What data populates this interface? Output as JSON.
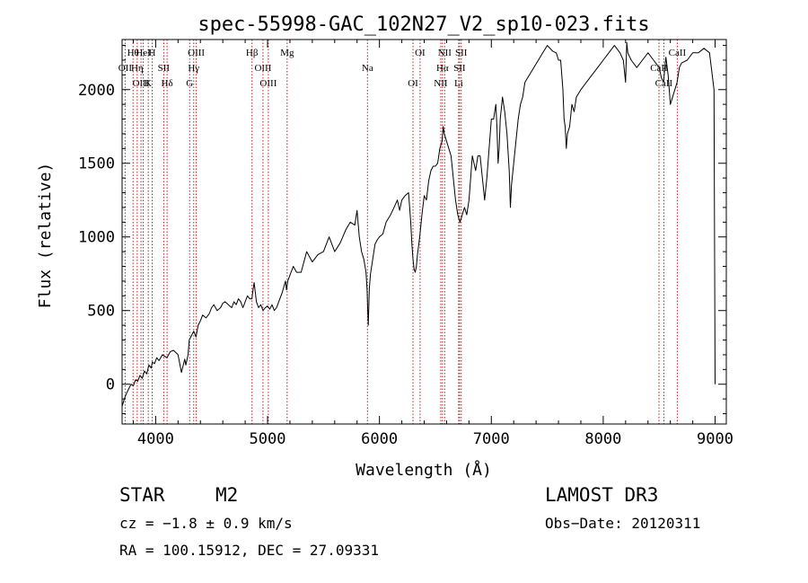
{
  "chart_data": {
    "type": "line",
    "title": "spec-55998-GAC_102N27_V2_sp10-023.fits",
    "xlabel": "Wavelength (Å)",
    "ylabel": "Flux (relative)",
    "xlim": [
      3700,
      9100
    ],
    "ylim": [
      -270,
      2340
    ],
    "xticks": [
      4000,
      5000,
      6000,
      7000,
      8000,
      9000
    ],
    "xtick_labels": [
      "4000",
      "5000",
      "6000",
      "7000",
      "8000",
      "9000"
    ],
    "yticks": [
      0,
      500,
      1000,
      1500,
      2000
    ],
    "ytick_labels": [
      "0",
      "500",
      "1000",
      "1500",
      "2000"
    ],
    "series": [
      {
        "name": "spectrum",
        "x": [
          3700,
          3720,
          3740,
          3760,
          3780,
          3800,
          3820,
          3840,
          3860,
          3880,
          3900,
          3920,
          3940,
          3960,
          3970,
          3990,
          4010,
          4030,
          4060,
          4100,
          4130,
          4160,
          4200,
          4230,
          4260,
          4270,
          4290,
          4300,
          4320,
          4340,
          4360,
          4380,
          4400,
          4420,
          4450,
          4480,
          4500,
          4520,
          4550,
          4580,
          4600,
          4620,
          4650,
          4680,
          4700,
          4720,
          4740,
          4760,
          4780,
          4800,
          4820,
          4840,
          4860,
          4870,
          4880,
          4900,
          4920,
          4940,
          4960,
          4980,
          5000,
          5020,
          5040,
          5060,
          5080,
          5100,
          5130,
          5160,
          5170,
          5180,
          5200,
          5230,
          5260,
          5300,
          5350,
          5400,
          5450,
          5500,
          5550,
          5600,
          5650,
          5700,
          5740,
          5780,
          5800,
          5820,
          5840,
          5860,
          5880,
          5890,
          5895,
          5900,
          5910,
          5920,
          5940,
          5960,
          5980,
          6000,
          6030,
          6060,
          6100,
          6130,
          6160,
          6180,
          6200,
          6230,
          6260,
          6280,
          6290,
          6300,
          6310,
          6320,
          6330,
          6340,
          6360,
          6380,
          6400,
          6420,
          6440,
          6460,
          6480,
          6500,
          6520,
          6540,
          6560,
          6570,
          6580,
          6600,
          6620,
          6640,
          6660,
          6680,
          6700,
          6720,
          6740,
          6760,
          6780,
          6800,
          6830,
          6860,
          6880,
          6900,
          6920,
          6940,
          6960,
          6980,
          7000,
          7020,
          7040,
          7050,
          7060,
          7070,
          7080,
          7100,
          7120,
          7140,
          7160,
          7170,
          7180,
          7200,
          7220,
          7240,
          7260,
          7280,
          7300,
          7340,
          7380,
          7420,
          7460,
          7500,
          7550,
          7580,
          7600,
          7620,
          7640,
          7650,
          7660,
          7670,
          7680,
          7700,
          7720,
          7740,
          7760,
          7800,
          7850,
          7900,
          7950,
          8000,
          8050,
          8100,
          8150,
          8180,
          8200,
          8210,
          8220,
          8250,
          8300,
          8350,
          8400,
          8450,
          8500,
          8520,
          8540,
          8550,
          8560,
          8580,
          8600,
          8640,
          8660,
          8680,
          8700,
          8750,
          8800,
          8850,
          8900,
          8950,
          8990,
          9000
        ],
        "y": [
          -150,
          -100,
          -60,
          -30,
          0,
          -10,
          30,
          20,
          60,
          40,
          90,
          70,
          130,
          110,
          150,
          140,
          180,
          160,
          200,
          180,
          220,
          230,
          200,
          80,
          170,
          130,
          200,
          300,
          330,
          360,
          320,
          400,
          430,
          470,
          450,
          480,
          520,
          540,
          500,
          520,
          550,
          560,
          540,
          520,
          560,
          540,
          580,
          560,
          520,
          560,
          600,
          580,
          580,
          640,
          690,
          560,
          520,
          540,
          500,
          520,
          530,
          510,
          540,
          500,
          520,
          560,
          620,
          700,
          640,
          700,
          740,
          800,
          760,
          760,
          900,
          830,
          880,
          900,
          1000,
          900,
          960,
          1050,
          1100,
          1080,
          1180,
          1000,
          900,
          850,
          760,
          640,
          500,
          400,
          650,
          750,
          850,
          950,
          980,
          1000,
          1020,
          1100,
          1150,
          1200,
          1250,
          1180,
          1250,
          1280,
          1300,
          1100,
          950,
          850,
          780,
          760,
          800,
          880,
          1000,
          1150,
          1280,
          1250,
          1380,
          1450,
          1480,
          1480,
          1500,
          1600,
          1650,
          1750,
          1700,
          1650,
          1600,
          1550,
          1400,
          1250,
          1150,
          1100,
          1150,
          1200,
          1150,
          1250,
          1550,
          1450,
          1550,
          1550,
          1400,
          1250,
          1400,
          1600,
          1800,
          1800,
          1900,
          1750,
          1500,
          1600,
          1800,
          1950,
          1850,
          1700,
          1450,
          1200,
          1350,
          1500,
          1650,
          1800,
          1900,
          1950,
          2050,
          2100,
          2150,
          2200,
          2250,
          2300,
          2260,
          2250,
          2200,
          2200,
          2000,
          1800,
          1750,
          1600,
          1700,
          1750,
          1900,
          1850,
          1950,
          2000,
          2050,
          2100,
          2150,
          2200,
          2250,
          2300,
          2250,
          2200,
          2050,
          2320,
          2250,
          2200,
          2150,
          2200,
          2250,
          2200,
          2150,
          2080,
          2050,
          2150,
          2220,
          2100,
          1900,
          2000,
          2050,
          2150,
          2180,
          2200,
          2250,
          2250,
          2280,
          2250,
          2000,
          0
        ]
      }
    ],
    "line_markers": [
      {
        "label": "Hθ",
        "wavelength": 3798
      },
      {
        "label": "OII",
        "wavelength": 3727
      },
      {
        "label": "OIII",
        "wavelength": 3869
      },
      {
        "label": "HeI",
        "wavelength": 3889
      },
      {
        "label": "Hη",
        "wavelength": 3835
      },
      {
        "label": "K",
        "wavelength": 3934
      },
      {
        "label": "H",
        "wavelength": 3969
      },
      {
        "label": "SII",
        "wavelength": 4072
      },
      {
        "label": "Hδ",
        "wavelength": 4102
      },
      {
        "label": "OIII",
        "wavelength": 4363
      },
      {
        "label": "Hγ",
        "wavelength": 4340
      },
      {
        "label": "G",
        "wavelength": 4304
      },
      {
        "label": "Hβ",
        "wavelength": 4861
      },
      {
        "label": "OIII",
        "wavelength": 4959
      },
      {
        "label": "OIII",
        "wavelength": 5007
      },
      {
        "label": "Mg",
        "wavelength": 5175
      },
      {
        "label": "Na",
        "wavelength": 5893
      },
      {
        "label": "OI",
        "wavelength": 6300
      },
      {
        "label": "OI",
        "wavelength": 6363
      },
      {
        "label": "Hα",
        "wavelength": 6563
      },
      {
        "label": "NII",
        "wavelength": 6548
      },
      {
        "label": "NII",
        "wavelength": 6583
      },
      {
        "label": "SII",
        "wavelength": 6716
      },
      {
        "label": "Li",
        "wavelength": 6708
      },
      {
        "label": "SII",
        "wavelength": 6731
      },
      {
        "label": "CaII",
        "wavelength": 8498
      },
      {
        "label": "CaII",
        "wavelength": 8542
      },
      {
        "label": "CaII",
        "wavelength": 8662
      }
    ]
  },
  "info": {
    "object_class": "STAR",
    "subclass": "M2",
    "survey": "LAMOST DR3",
    "cz": "cz = −1.8 ± 0.9 km/s",
    "obs_date": "Obs−Date: 20120311",
    "coords": "RA = 100.15912, DEC =  27.09331"
  },
  "colors": {
    "spectrum": "#000000",
    "marker_line": "#b22222",
    "axis": "#000000"
  }
}
